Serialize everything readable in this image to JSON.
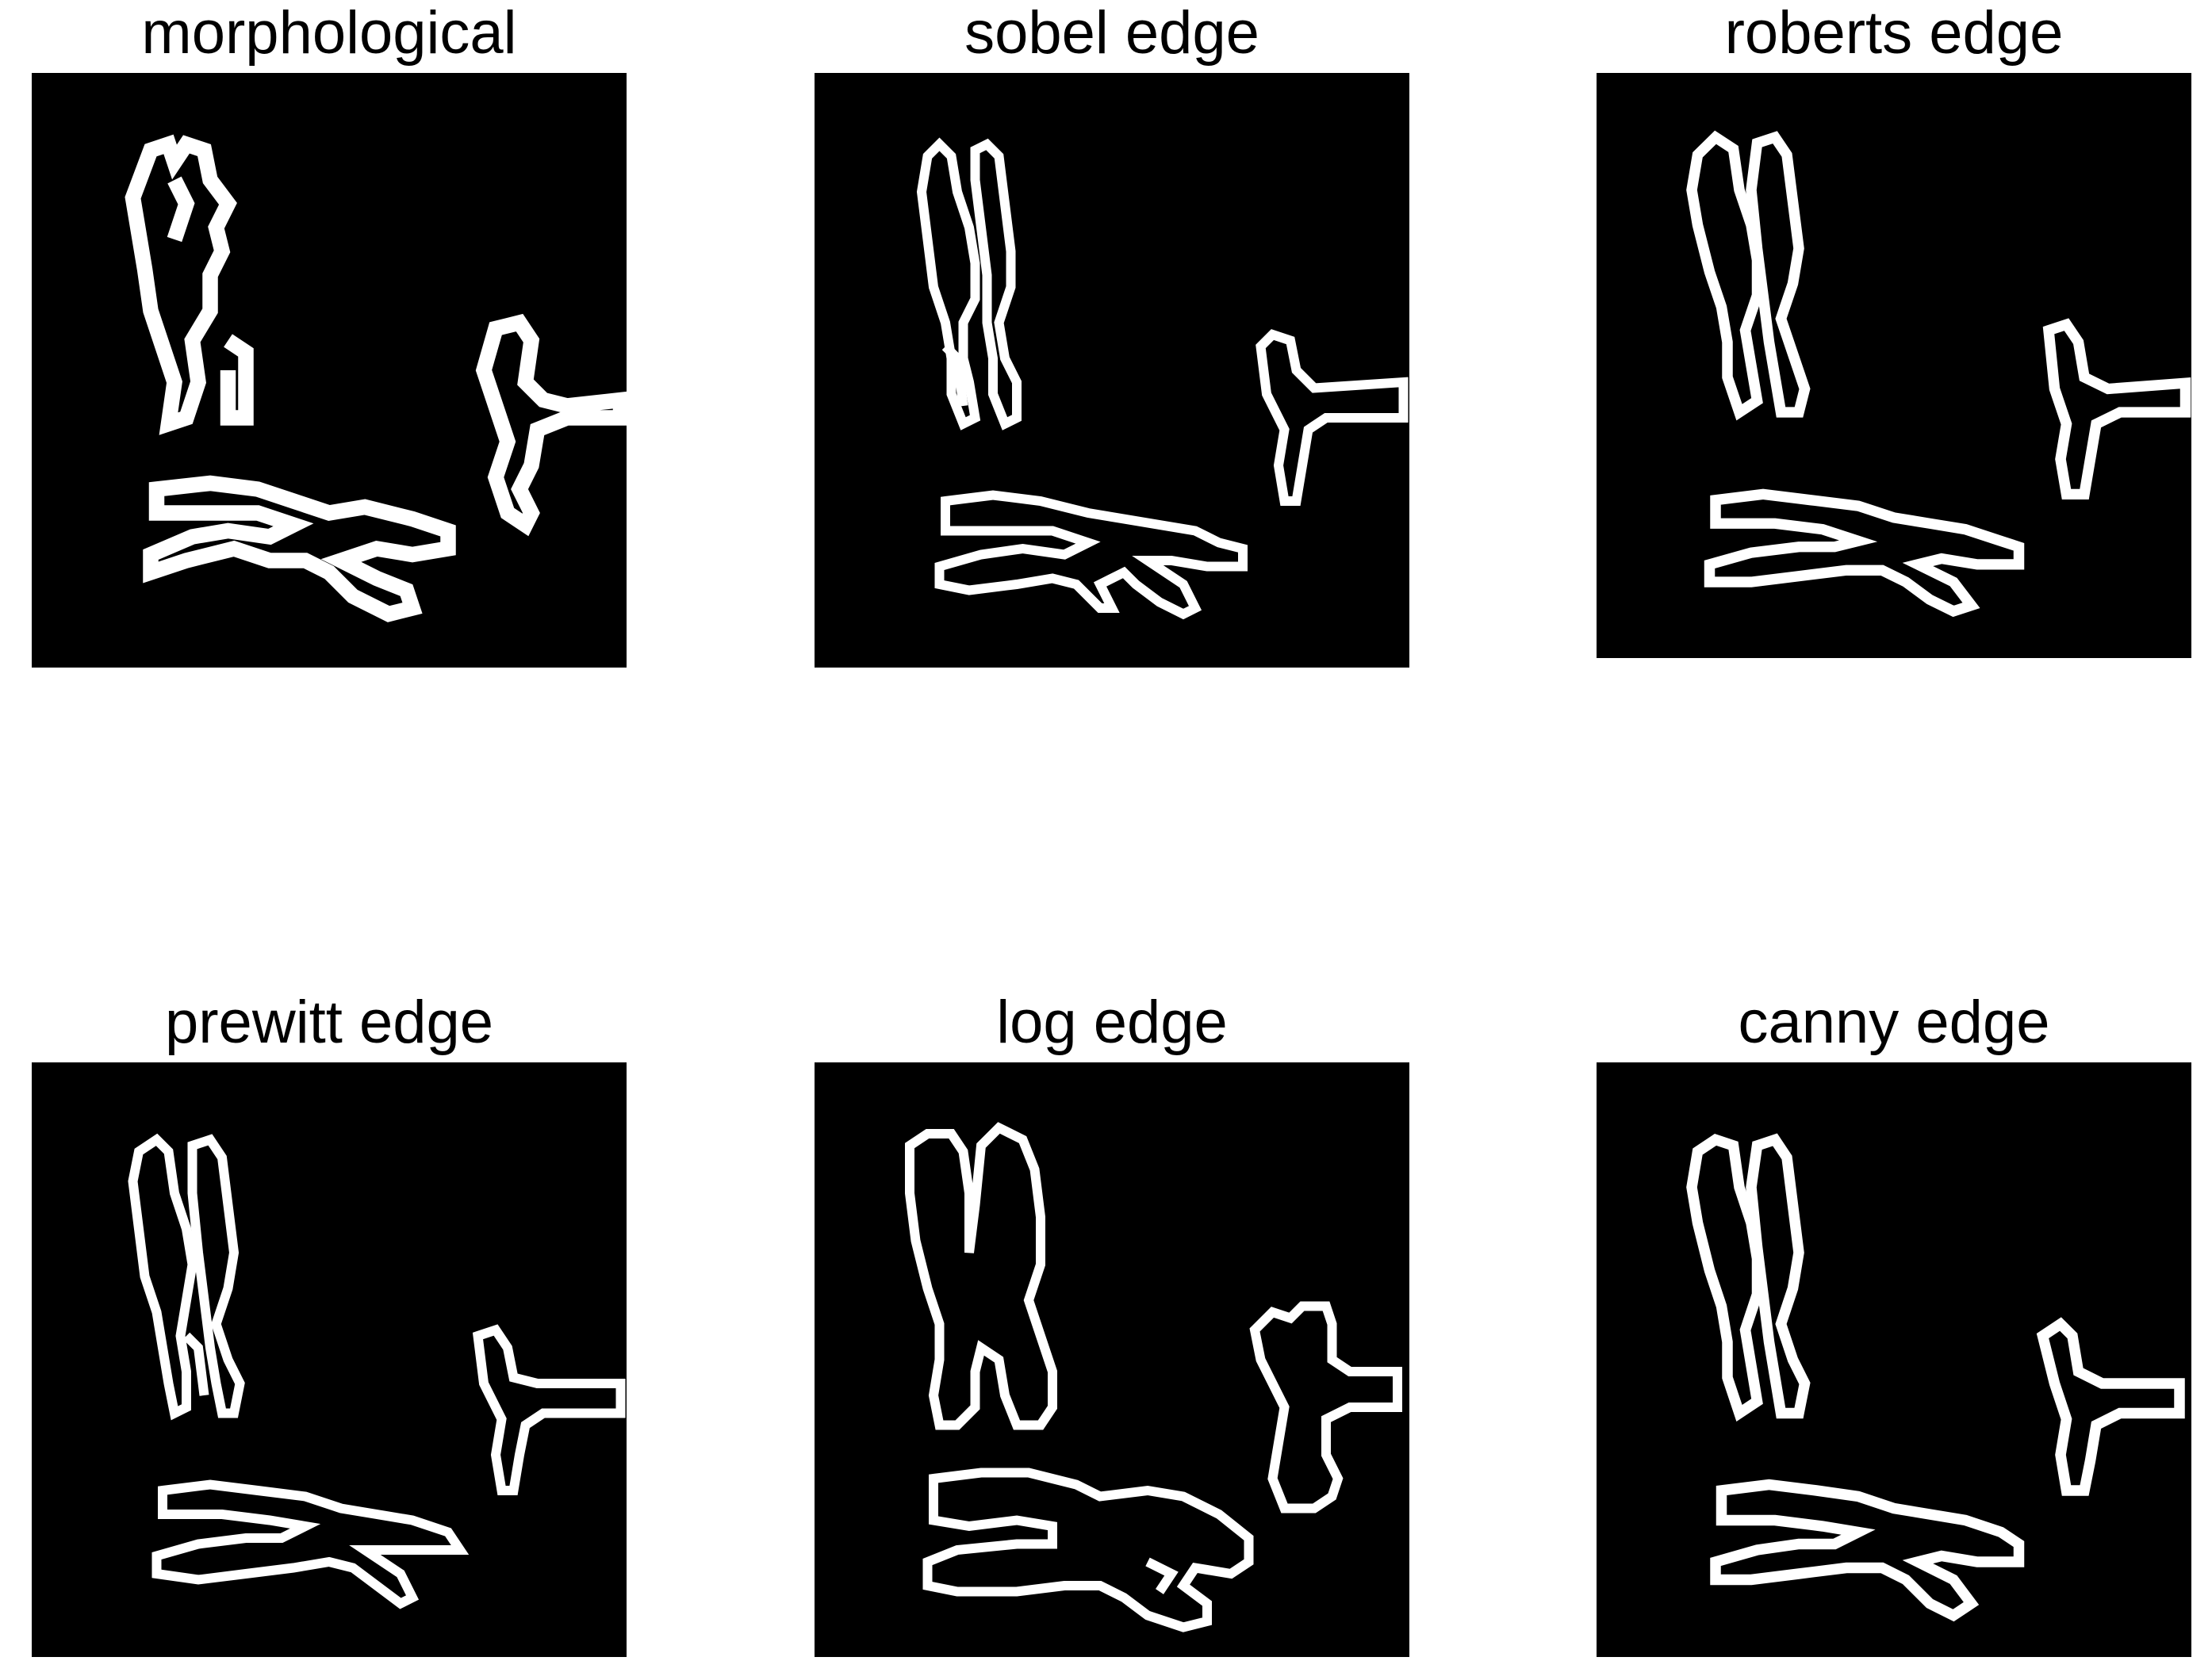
{
  "panels": [
    {
      "title": "morphological"
    },
    {
      "title": "sobel edge"
    },
    {
      "title": "roberts edge"
    },
    {
      "title": "prewitt edge"
    },
    {
      "title": "log edge"
    },
    {
      "title": "canny edge"
    }
  ],
  "colors": {
    "background": "#ffffff",
    "image_bg": "#000000",
    "edge": "#ffffff"
  }
}
